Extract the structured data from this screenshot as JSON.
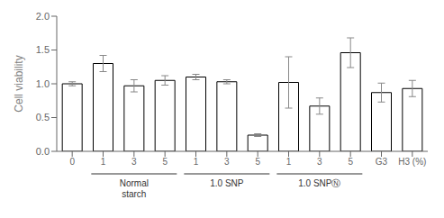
{
  "chart_data": {
    "type": "bar",
    "categories": [
      "0",
      "1",
      "3",
      "5",
      "1",
      "3",
      "5",
      "1",
      "3",
      "5",
      "G3",
      "H3 (%)"
    ],
    "values": [
      1.0,
      1.3,
      0.97,
      1.05,
      1.1,
      1.03,
      0.24,
      1.02,
      0.67,
      1.46,
      0.87,
      0.93
    ],
    "errors": [
      0.03,
      0.12,
      0.09,
      0.07,
      0.04,
      0.03,
      0.02,
      0.38,
      0.12,
      0.22,
      0.14,
      0.12
    ],
    "ylabel": "Cell viability",
    "annotations": [
      "Normal\nstarch",
      "1.0 SNP",
      "1.0 SNPⓃ"
    ],
    "ylim": [
      0.0,
      2.0
    ],
    "yticks": [
      {
        "value": 0.0,
        "label": "0.0"
      },
      0.5,
      {
        "value": 1.0,
        "label": "1.0"
      },
      1.5,
      {
        "value": 2.0,
        "label": "2.0"
      }
    ],
    "color": "#ffffff",
    "grid": false
  }
}
